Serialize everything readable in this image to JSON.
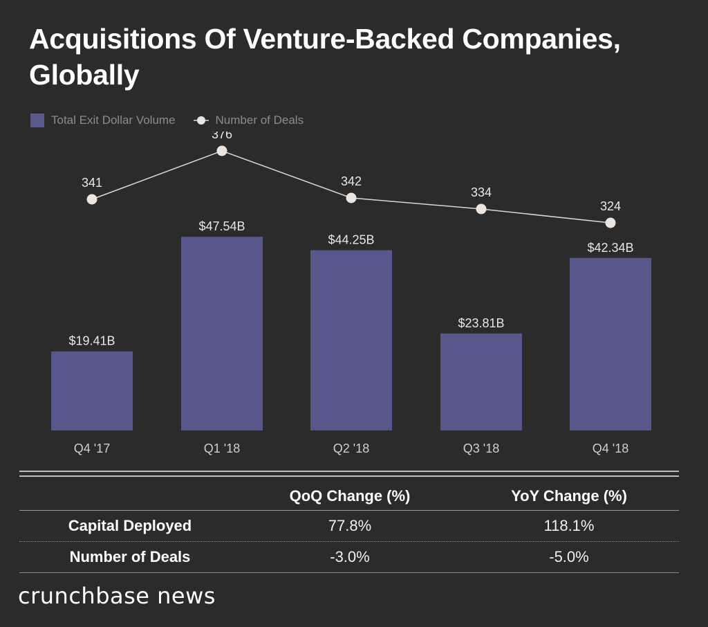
{
  "title": "Acquisitions Of Venture-Backed Companies, Globally",
  "legend": {
    "bar_label": "Total Exit Dollar Volume",
    "line_label": "Number of Deals"
  },
  "colors": {
    "bar": "#58578c",
    "line": "#d9d9d9",
    "marker": "#ece5df"
  },
  "chart_data": {
    "type": "bar",
    "categories": [
      "Q4 '17",
      "Q1 '18",
      "Q2 '18",
      "Q3 '18",
      "Q4 '18"
    ],
    "series": [
      {
        "name": "Total Exit Dollar Volume",
        "type": "bar",
        "values": [
          19.41,
          47.54,
          44.25,
          23.81,
          42.34
        ],
        "labels": [
          "$19.41B",
          "$47.54B",
          "$44.25B",
          "$23.81B",
          "$42.34B"
        ]
      },
      {
        "name": "Number of Deals",
        "type": "line",
        "values": [
          341,
          376,
          342,
          334,
          324
        ],
        "labels": [
          "341",
          "376",
          "342",
          "334",
          "324"
        ]
      }
    ],
    "bar_ylim": [
      0,
      53
    ],
    "line_ylim": [
      300,
      390
    ],
    "title": "Acquisitions Of Venture-Backed Companies, Globally"
  },
  "table": {
    "headers": [
      "",
      "QoQ Change (%)",
      "YoY Change (%)"
    ],
    "rows": [
      {
        "label": "Capital Deployed",
        "qoq": "77.8%",
        "yoy": "118.1%"
      },
      {
        "label": "Number of Deals",
        "qoq": "-3.0%",
        "yoy": "-5.0%"
      }
    ]
  },
  "brand": "crunchbase news"
}
